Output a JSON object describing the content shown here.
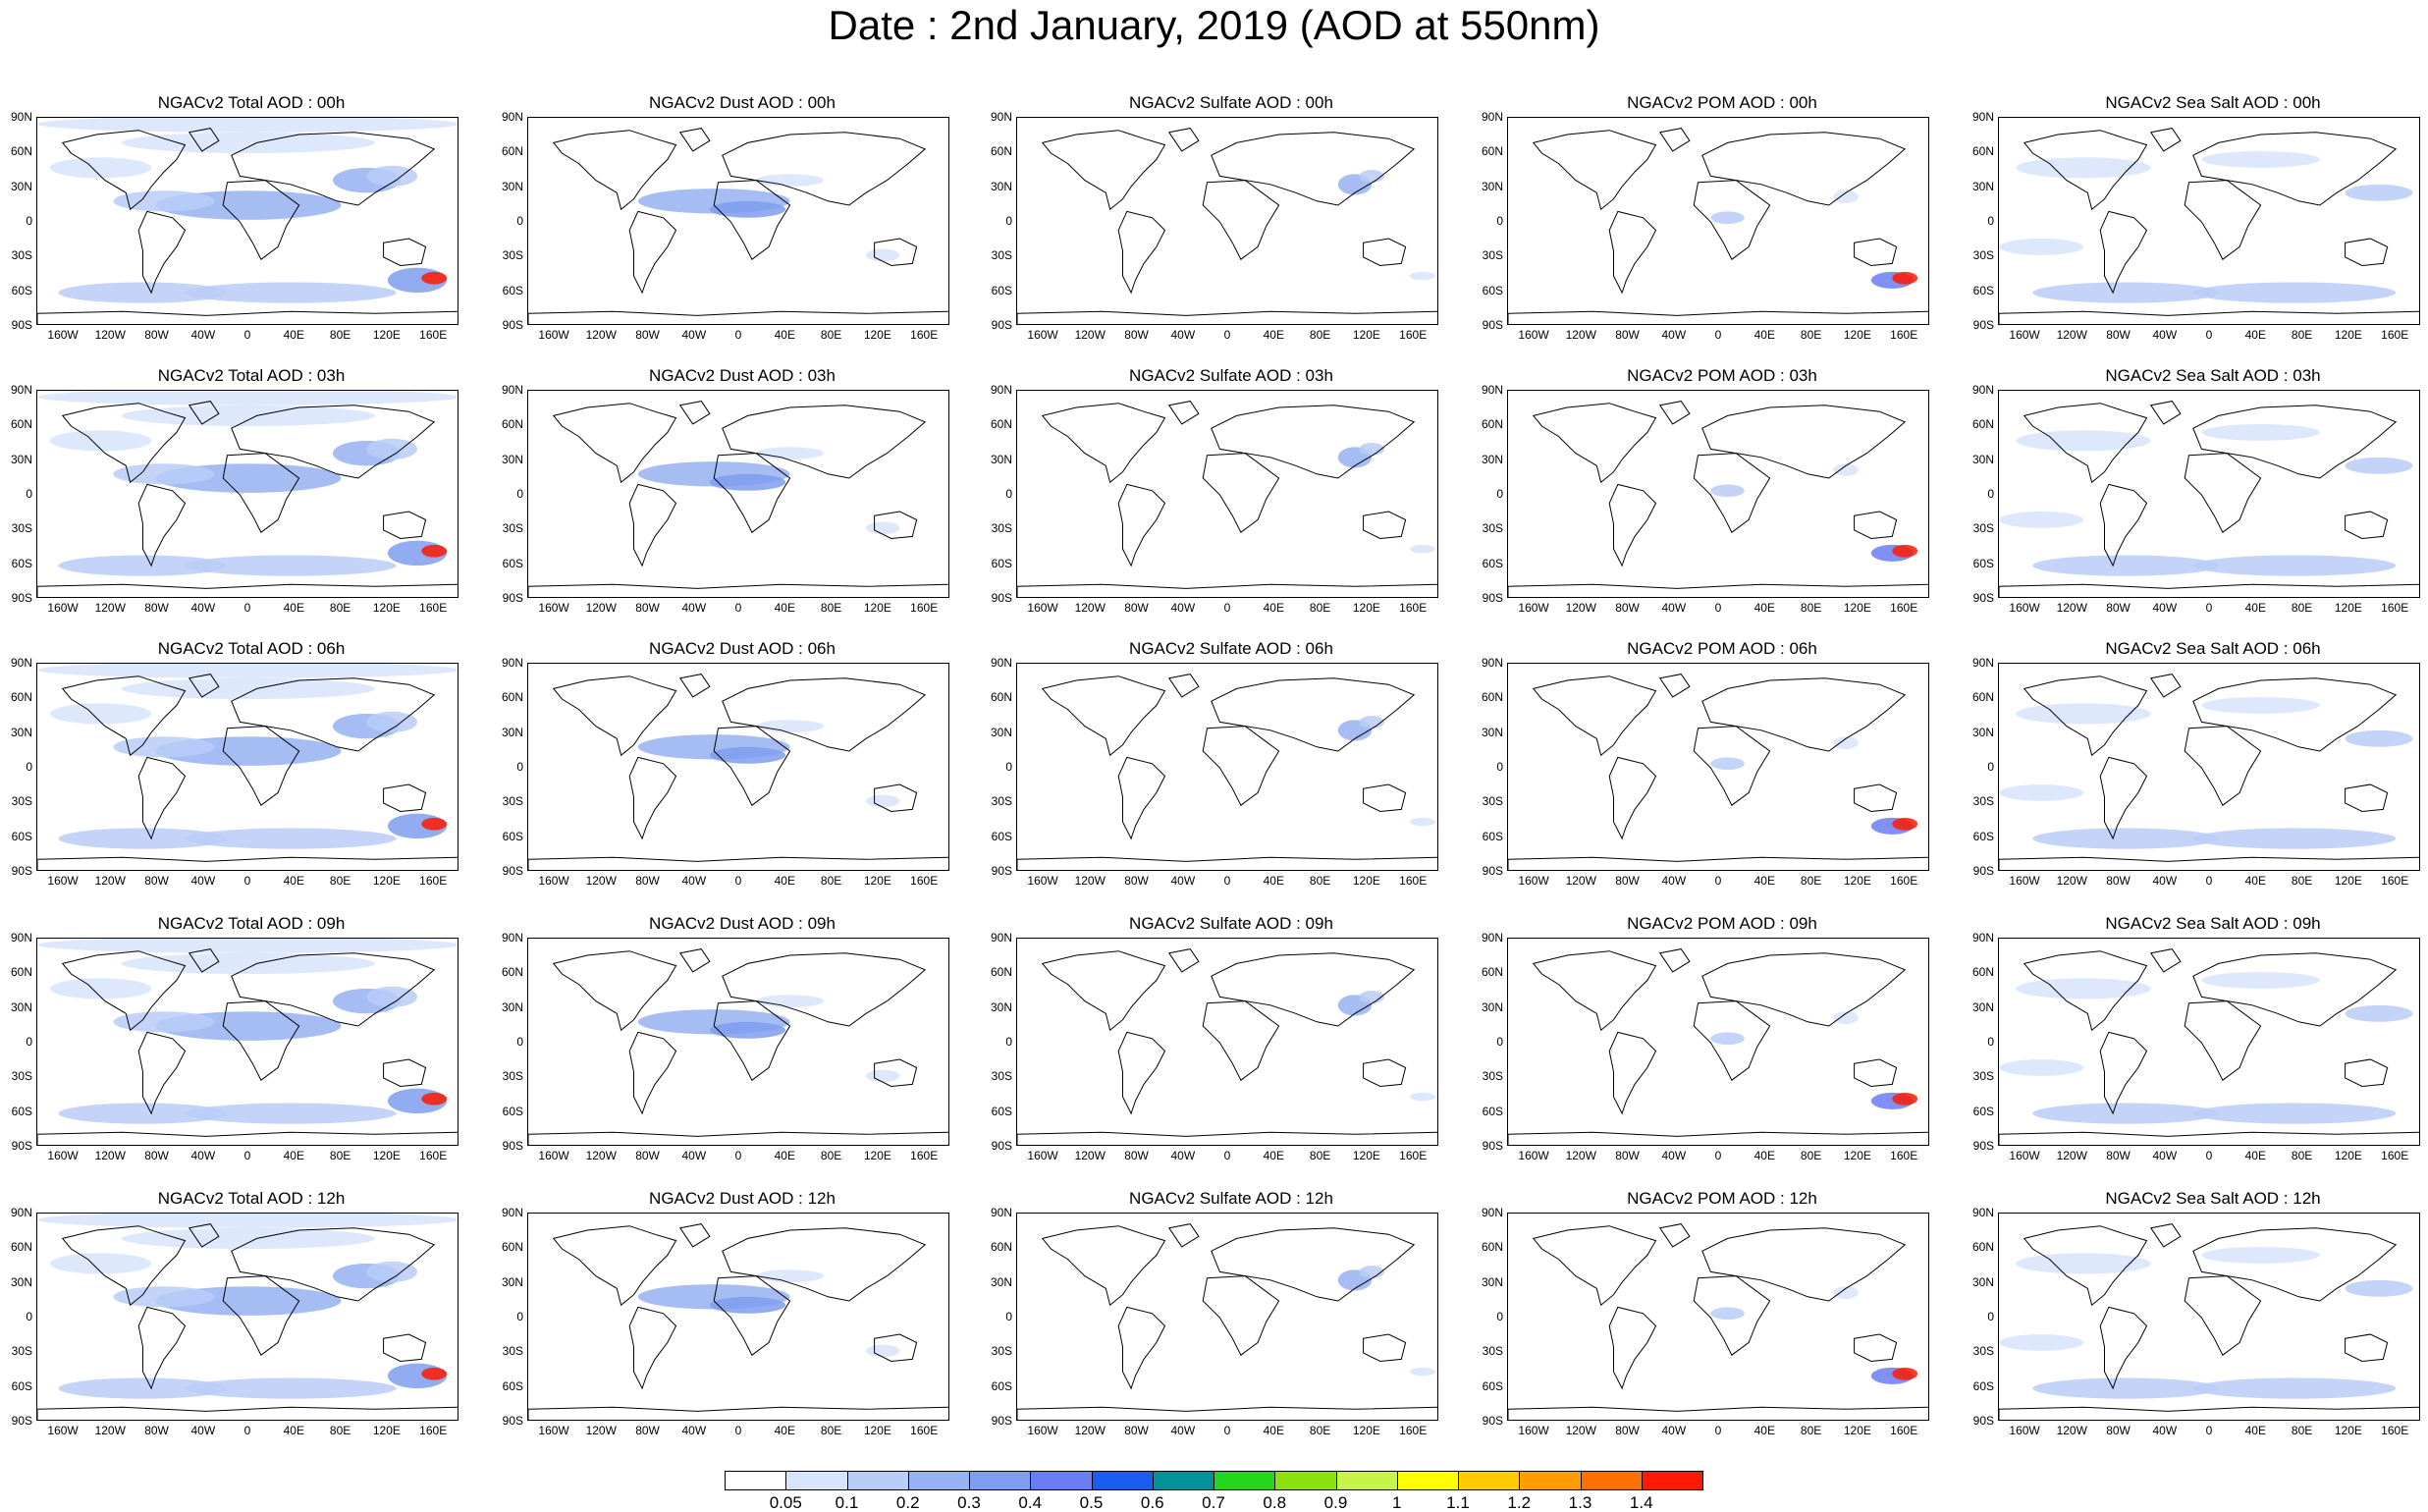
{
  "title": "Date : 2nd January, 2019 (AOD at 550nm)",
  "lat_ticks": [
    "90N",
    "60N",
    "30N",
    "0",
    "30S",
    "60S",
    "90S"
  ],
  "lon_ticks": [
    "160W",
    "120W",
    "80W",
    "40W",
    "0",
    "40E",
    "80E",
    "120E",
    "160E"
  ],
  "panels": [
    [
      "NGACv2 Total AOD : 00h",
      "NGACv2 Dust AOD : 00h",
      "NGACv2 Sulfate AOD : 00h",
      "NGACv2 POM AOD : 00h",
      "NGACv2 Sea Salt AOD : 00h"
    ],
    [
      "NGACv2 Total AOD : 03h",
      "NGACv2 Dust AOD : 03h",
      "NGACv2 Sulfate AOD : 03h",
      "NGACv2 POM AOD : 03h",
      "NGACv2 Sea Salt AOD : 03h"
    ],
    [
      "NGACv2 Total AOD : 06h",
      "NGACv2 Dust AOD : 06h",
      "NGACv2 Sulfate AOD : 06h",
      "NGACv2 POM AOD : 06h",
      "NGACv2 Sea Salt AOD : 06h"
    ],
    [
      "NGACv2 Total AOD : 09h",
      "NGACv2 Dust AOD : 09h",
      "NGACv2 Sulfate AOD : 09h",
      "NGACv2 POM AOD : 09h",
      "NGACv2 Sea Salt  AOD : 09h"
    ],
    [
      "NGACv2 Total AOD :  12h",
      "NGACv2 Dust AOD : 12h",
      "NGACv2 Sulfate AOD : 12h",
      "NGACv2 POM  AOD : 12h",
      "NGACv2 Sea Salt  AOD : 12h"
    ]
  ],
  "colorbar": {
    "labels": [
      "0.05",
      "0.1",
      "0.2",
      "0.3",
      "0.4",
      "0.5",
      "0.6",
      "0.7",
      "0.8",
      "0.9",
      "1",
      "1.1",
      "1.2",
      "1.3",
      "1.4"
    ],
    "colors": [
      "#ffffff",
      "#d8e4fb",
      "#b8cdf7",
      "#97b2f2",
      "#7f9ef0",
      "#6a7df2",
      "#1b5cf0",
      "#00929a",
      "#25d61f",
      "#8be20f",
      "#c7f34a",
      "#ffff00",
      "#fecb00",
      "#fe9e00",
      "#fe7100",
      "#fe1a00"
    ]
  }
}
